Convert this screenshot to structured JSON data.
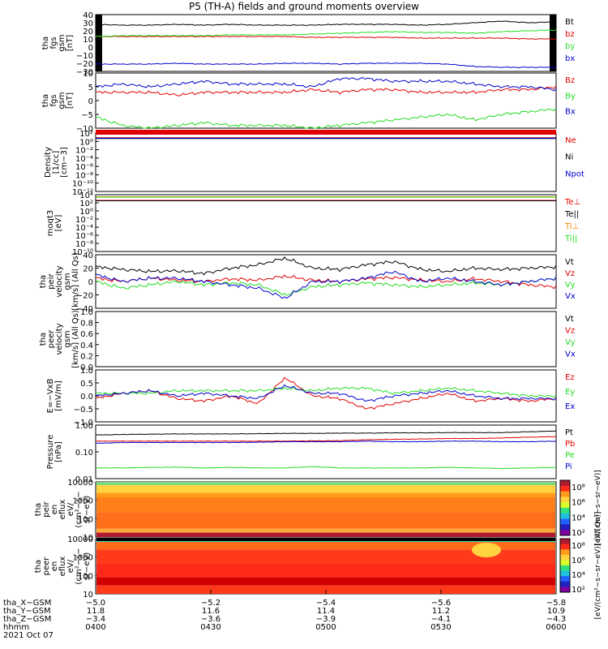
{
  "title": "P5 (TH-A) fields and ground moments overview",
  "date_label": "2021 Oct 07",
  "colors": {
    "black": "#000000",
    "red": "#e00000",
    "green": "#22dd22",
    "blue": "#0000cc",
    "orange": "#ff7f00"
  },
  "chart_data": [
    {
      "type": "line",
      "ylabel": [
        "tha",
        "fgs",
        "gsm",
        "[nT]"
      ],
      "yticks": [
        "40",
        "30",
        "20",
        "10",
        "0",
        "−10",
        "−20",
        "−30"
      ],
      "ylim": [
        -30,
        40
      ],
      "series": [
        {
          "name": "Bt",
          "color": "black",
          "values": [
            28,
            27,
            27,
            28,
            27,
            28,
            27,
            27,
            27,
            28,
            28,
            28,
            27,
            28,
            30,
            32,
            30,
            31
          ]
        },
        {
          "name": "bz",
          "color": "red",
          "values": [
            13,
            13,
            13,
            13,
            13,
            13,
            13,
            13,
            12,
            12,
            12,
            12,
            11,
            11,
            11,
            11,
            10,
            10
          ]
        },
        {
          "name": "by",
          "color": "green",
          "values": [
            13,
            14,
            14,
            14,
            14,
            15,
            15,
            15,
            16,
            17,
            18,
            19,
            18,
            18,
            17,
            19,
            20,
            21
          ]
        },
        {
          "name": "bx",
          "color": "blue",
          "values": [
            -21,
            -21,
            -21,
            -20,
            -21,
            -21,
            -21,
            -20,
            -20,
            -21,
            -20,
            -20,
            -20,
            -21,
            -24,
            -25,
            -25,
            -25
          ]
        }
      ]
    },
    {
      "type": "line",
      "ylabel": [
        "tha",
        "fgs",
        "gsm",
        "[nT]"
      ],
      "yticks": [
        "10",
        "5",
        "0",
        "−5",
        "−10"
      ],
      "ylim": [
        -10,
        10
      ],
      "series": [
        {
          "name": "Bz",
          "color": "red",
          "values": [
            3,
            3,
            3,
            2,
            3,
            3,
            3,
            3,
            4,
            3,
            4,
            4,
            3,
            3,
            3,
            4,
            4,
            5
          ]
        },
        {
          "name": "By",
          "color": "green",
          "values": [
            -6,
            -9,
            -10,
            -9,
            -8,
            -9,
            -9,
            -9,
            -10,
            -9,
            -8,
            -7,
            -6,
            -5,
            -7,
            -5,
            -4,
            -3
          ]
        },
        {
          "name": "Bx",
          "color": "blue",
          "values": [
            5,
            6,
            5,
            6,
            7,
            6,
            6,
            6,
            5,
            8,
            8,
            7,
            7,
            7,
            6,
            5,
            5,
            4
          ]
        }
      ]
    },
    {
      "type": "line",
      "ylabel": [
        "Density",
        "[1/cc]",
        "[cm−3]"
      ],
      "yticks": [
        "10²",
        "10⁰",
        "10⁻²",
        "10⁻⁴",
        "10⁻⁶",
        "10⁻⁸",
        "10⁻¹⁰",
        "10⁻¹²"
      ],
      "ylim": [
        -12,
        2
      ],
      "series": [
        {
          "name": "Ne",
          "color": "red",
          "values": [
            0.9,
            0.9,
            0.9,
            0.9,
            0.9,
            0.9,
            0.9,
            0.9,
            0.9,
            0.9,
            0.9,
            0.9,
            0.9,
            0.9,
            0.9,
            0.9,
            0.9,
            0.9
          ]
        },
        {
          "name": "Ni",
          "color": "black",
          "values": [
            0.7,
            0.7,
            0.7,
            0.7,
            0.7,
            0.7,
            0.7,
            0.7,
            0.7,
            0.7,
            0.7,
            0.7,
            0.7,
            0.7,
            0.7,
            0.7,
            0.7,
            0.7
          ]
        },
        {
          "name": "Npot",
          "color": "blue",
          "values": [
            0.8,
            0.8,
            0.8,
            0.8,
            0.8,
            0.8,
            0.8,
            0.8,
            0.8,
            0.8,
            0.8,
            0.8,
            0.8,
            0.8,
            0.8,
            0.8,
            0.8,
            0.8
          ]
        }
      ]
    },
    {
      "type": "line",
      "ylabel": [
        "moqt3",
        "[eV]"
      ],
      "yticks": [
        "10⁴",
        "10²",
        "10⁰",
        "10⁻²",
        "10⁻⁴",
        "10⁻⁶",
        "10⁻⁸",
        "10⁻¹⁰"
      ],
      "ylim": [
        -10,
        4
      ],
      "series": [
        {
          "name": "Te⊥",
          "color": "red",
          "values": [
            2.6,
            2.6,
            2.6,
            2.6,
            2.6,
            2.6,
            2.6,
            2.6,
            2.6,
            2.6,
            2.6,
            2.6,
            2.6,
            2.6,
            2.6,
            2.6,
            2.6,
            2.6
          ]
        },
        {
          "name": "Te||",
          "color": "black",
          "values": [
            2.5,
            2.5,
            2.5,
            2.5,
            2.5,
            2.5,
            2.5,
            2.5,
            2.5,
            2.5,
            2.5,
            2.5,
            2.5,
            2.5,
            2.5,
            2.5,
            2.5,
            2.5
          ]
        },
        {
          "name": "Ti⊥",
          "color": "orange",
          "values": [
            3.5,
            3.5,
            3.5,
            3.5,
            3.5,
            3.5,
            3.5,
            3.5,
            3.5,
            3.5,
            3.5,
            3.5,
            3.5,
            3.5,
            3.5,
            3.5,
            3.5,
            3.5
          ]
        },
        {
          "name": "Ti||",
          "color": "green",
          "values": [
            3.4,
            3.4,
            3.4,
            3.4,
            3.4,
            3.4,
            3.4,
            3.4,
            3.4,
            3.4,
            3.4,
            3.4,
            3.4,
            3.4,
            3.4,
            3.4,
            3.4,
            3.4
          ]
        }
      ]
    },
    {
      "type": "line",
      "ylabel": [
        "tha",
        "peir",
        "velocity",
        "gsm",
        "[km/s] (All Qs)"
      ],
      "yticks": [
        "40",
        "20",
        "0",
        "−20",
        "−40"
      ],
      "ylim": [
        -40,
        40
      ],
      "series": [
        {
          "name": "Vt",
          "color": "black",
          "values": [
            22,
            18,
            15,
            16,
            12,
            20,
            25,
            35,
            20,
            18,
            25,
            30,
            18,
            15,
            20,
            18,
            20,
            22
          ]
        },
        {
          "name": "Vz",
          "color": "red",
          "values": [
            5,
            0,
            5,
            2,
            0,
            4,
            2,
            8,
            2,
            0,
            4,
            6,
            2,
            0,
            4,
            0,
            -5,
            -8
          ]
        },
        {
          "name": "Vy",
          "color": "green",
          "values": [
            0,
            -10,
            -5,
            0,
            -5,
            -2,
            -5,
            -20,
            -8,
            -5,
            -2,
            -5,
            -8,
            -5,
            -2,
            -5,
            0,
            5
          ]
        },
        {
          "name": "Vx",
          "color": "blue",
          "values": [
            10,
            0,
            5,
            5,
            0,
            -5,
            -10,
            -25,
            0,
            0,
            5,
            15,
            0,
            5,
            0,
            -5,
            0,
            5
          ]
        }
      ]
    },
    {
      "type": "line",
      "ylabel": [
        "tha",
        "peer",
        "velocity",
        "gsm",
        "[km/s] (All Qs)"
      ],
      "yticks": [
        "1.0",
        "0.8",
        "0.6",
        "0.4",
        "0.2",
        "0.0"
      ],
      "ylim": [
        0,
        1
      ],
      "series": [
        {
          "name": "Vt",
          "color": "black",
          "values": []
        },
        {
          "name": "Vz",
          "color": "red",
          "values": []
        },
        {
          "name": "Vy",
          "color": "green",
          "values": []
        },
        {
          "name": "Vx",
          "color": "blue",
          "values": []
        }
      ]
    },
    {
      "type": "line",
      "ylabel": [
        "E=−VxB",
        "[mV/m]"
      ],
      "yticks": [
        "1.0",
        "0.5",
        "0.0",
        "−0.5",
        "−1.0"
      ],
      "ylim": [
        -1,
        1
      ],
      "series": [
        {
          "name": "Ez",
          "color": "red",
          "values": [
            -0.1,
            0.1,
            0.2,
            -0.1,
            -0.2,
            0,
            -0.3,
            0.7,
            0,
            -0.1,
            -0.5,
            -0.3,
            -0.1,
            0.1,
            -0.2,
            -0.1,
            -0.2,
            -0.1
          ]
        },
        {
          "name": "Ey",
          "color": "green",
          "values": [
            0.1,
            0.1,
            0.1,
            0.2,
            0.2,
            0.2,
            0.2,
            0.3,
            0.2,
            0.3,
            0.3,
            0.1,
            0.2,
            0.3,
            0.2,
            0.1,
            0,
            0
          ]
        },
        {
          "name": "Ex",
          "color": "blue",
          "values": [
            0,
            0.1,
            0.2,
            0,
            0.1,
            0,
            -0.1,
            0.4,
            0.1,
            0.1,
            -0.2,
            0,
            0.1,
            0.2,
            0,
            -0.1,
            -0.1,
            -0.1
          ]
        }
      ]
    },
    {
      "type": "line",
      "ylabel": [
        "Pressure",
        "[nPa]"
      ],
      "yticks": [
        "1.00",
        "0.10",
        "0.01"
      ],
      "ylim": [
        -2,
        0
      ],
      "series": [
        {
          "name": "Pt",
          "color": "black",
          "values": [
            -0.37,
            -0.35,
            -0.34,
            -0.33,
            -0.33,
            -0.33,
            -0.32,
            -0.31,
            -0.31,
            -0.3,
            -0.3,
            -0.29,
            -0.29,
            -0.28,
            -0.28,
            -0.28,
            -0.25,
            -0.22
          ]
        },
        {
          "name": "Pb",
          "color": "red",
          "values": [
            -0.6,
            -0.6,
            -0.6,
            -0.6,
            -0.6,
            -0.6,
            -0.6,
            -0.6,
            -0.59,
            -0.58,
            -0.55,
            -0.53,
            -0.52,
            -0.5,
            -0.5,
            -0.48,
            -0.45,
            -0.43
          ]
        },
        {
          "name": "Pe",
          "color": "green",
          "values": [
            -1.6,
            -1.6,
            -1.58,
            -1.57,
            -1.6,
            -1.58,
            -1.6,
            -1.6,
            -1.55,
            -1.6,
            -1.6,
            -1.6,
            -1.6,
            -1.58,
            -1.6,
            -1.62,
            -1.6,
            -1.58
          ]
        },
        {
          "name": "Pi",
          "color": "blue",
          "values": [
            -0.68,
            -0.65,
            -0.65,
            -0.65,
            -0.65,
            -0.65,
            -0.64,
            -0.62,
            -0.62,
            -0.62,
            -0.6,
            -0.62,
            -0.62,
            -0.6,
            -0.6,
            -0.62,
            -0.62,
            -0.6
          ]
        }
      ]
    },
    {
      "type": "heatmap",
      "ylabel": [
        "tha",
        "peir",
        "en",
        "eflux",
        "eV/",
        "(cm²−s−",
        "sr−eV)"
      ],
      "yticks": [
        "10000",
        "1000",
        "100",
        "10"
      ],
      "ylim": [
        1,
        4.2
      ],
      "colorbar": {
        "ticks": [
          "10⁸",
          "10⁶",
          "10⁴",
          "10²"
        ],
        "label": "[eV/(cm²−s−sr−eV)]"
      }
    },
    {
      "type": "heatmap",
      "ylabel": [
        "tha",
        "peer",
        "en",
        "eflux",
        "eV/",
        "(cm²−s−",
        "sr−eV)"
      ],
      "yticks": [
        "10000",
        "1000",
        "100",
        "10"
      ],
      "ylim": [
        1,
        4.2
      ],
      "colorbar": {
        "ticks": [
          "10⁸",
          "10⁶",
          "10⁴",
          "10²"
        ],
        "label": "[eV/(cm²−s−sr−eV)] (All Qs)]"
      }
    }
  ],
  "x_axis": {
    "tick_count": 5,
    "row_labels": [
      "tha_X−GSM",
      "tha_Y−GSM",
      "tha_Z−GSM",
      "hhmm"
    ],
    "rows": [
      [
        "−5.0",
        "−5.2",
        "−5.4",
        "−5.6",
        "−5.8"
      ],
      [
        "11.8",
        "11.6",
        "11.4",
        "11.2",
        "10.9"
      ],
      [
        "−3.4",
        "−3.6",
        "−3.9",
        "−4.1",
        "−4.3"
      ],
      [
        "0400",
        "0430",
        "0500",
        "0530",
        "0600"
      ]
    ]
  }
}
